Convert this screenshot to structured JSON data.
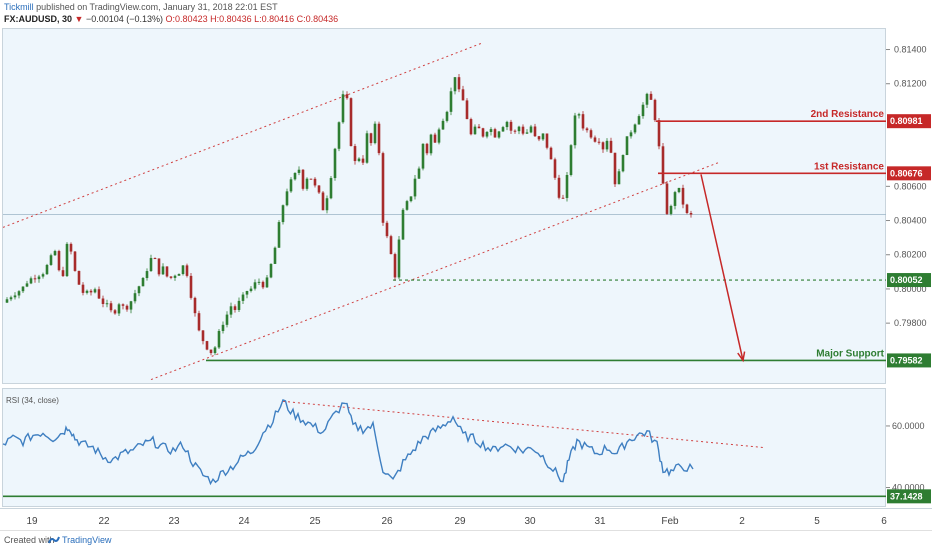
{
  "header": {
    "author": "Tickmill",
    "published_text": " published on TradingView.com, January 31, 2018 22:01 EST",
    "symbol": "FX:AUDUSD, 30",
    "change_arrow": "▼",
    "change_text": "−0.00104 (−0.13%)",
    "ohlc_text": "O:0.80423 H:0.80436 L:0.80416 C:0.80436"
  },
  "rsi_label": "RSI (34, close)",
  "footer": {
    "created_with": "Created with",
    "brand": "TradingView"
  },
  "colors": {
    "bull": "#2e7d32",
    "bear": "#a72b2b",
    "resistance": "#c62828",
    "support": "#2e7d32",
    "rsi_line": "#3f7fc1",
    "channel": "#d04040",
    "pane_bg": "#eef6fc"
  },
  "chart_data": [
    {
      "type": "candlestick",
      "title": "FX:AUDUSD, 30",
      "ylim": [
        0.7945,
        0.8152
      ],
      "y_ticks": [
        "0.81400",
        "0.81200",
        "0.80600",
        "0.80400",
        "0.80200",
        "0.80000",
        "0.79800"
      ],
      "x_ticks": [
        "19",
        "22",
        "23",
        "24",
        "25",
        "26",
        "29",
        "30",
        "31",
        "Feb",
        "2",
        "5",
        "6"
      ],
      "last_price": 0.80436,
      "grid": false,
      "levels": [
        {
          "name": "2nd Resistance",
          "value": 0.80981,
          "tag": "0.80981",
          "color": "#c62828",
          "style": "solid"
        },
        {
          "name": "1st Resistance",
          "value": 0.80676,
          "tag": "0.80676",
          "color": "#c62828",
          "style": "solid"
        },
        {
          "name": "",
          "value": 0.80052,
          "tag": "0.80052",
          "color": "#2e7d32",
          "style": "dashed"
        },
        {
          "name": "Major Support",
          "value": 0.79582,
          "tag": "0.79582",
          "color": "#2e7d32",
          "style": "solid"
        }
      ],
      "price_path": [
        [
          0,
          0.7992
        ],
        [
          10,
          0.7997
        ],
        [
          19,
          0.8
        ],
        [
          25,
          0.8005
        ],
        [
          34,
          0.8008
        ],
        [
          41,
          0.801
        ],
        [
          48,
          0.8018
        ],
        [
          52,
          0.8022
        ],
        [
          56,
          0.801
        ],
        [
          60,
          0.8009
        ],
        [
          64,
          0.8025
        ],
        [
          66,
          0.8028
        ],
        [
          70,
          0.8015
        ],
        [
          74,
          0.8005
        ],
        [
          80,
          0.7998
        ],
        [
          86,
          0.7997
        ],
        [
          92,
          0.8
        ],
        [
          98,
          0.7993
        ],
        [
          104,
          0.799
        ],
        [
          110,
          0.7985
        ],
        [
          116,
          0.7992
        ],
        [
          122,
          0.7988
        ],
        [
          128,
          0.7993
        ],
        [
          134,
          0.8
        ],
        [
          140,
          0.8005
        ],
        [
          146,
          0.8015
        ],
        [
          150,
          0.802
        ],
        [
          156,
          0.801
        ],
        [
          160,
          0.8012
        ],
        [
          166,
          0.8005
        ],
        [
          170,
          0.8008
        ],
        [
          176,
          0.801
        ],
        [
          182,
          0.8015
        ],
        [
          186,
          0.8003
        ],
        [
          190,
          0.799
        ],
        [
          196,
          0.7975
        ],
        [
          200,
          0.797
        ],
        [
          205,
          0.7965
        ],
        [
          210,
          0.7962
        ],
        [
          214,
          0.797
        ],
        [
          218,
          0.7978
        ],
        [
          224,
          0.7985
        ],
        [
          228,
          0.799
        ],
        [
          232,
          0.7988
        ],
        [
          236,
          0.7992
        ],
        [
          240,
          0.7995
        ],
        [
          244,
          0.7999
        ],
        [
          248,
          0.8
        ],
        [
          252,
          0.8003
        ],
        [
          258,
          0.8005
        ],
        [
          262,
          0.8
        ],
        [
          266,
          0.801
        ],
        [
          270,
          0.8018
        ],
        [
          274,
          0.803
        ],
        [
          278,
          0.8045
        ],
        [
          284,
          0.8058
        ],
        [
          290,
          0.8065
        ],
        [
          296,
          0.807
        ],
        [
          300,
          0.806
        ],
        [
          306,
          0.8068
        ],
        [
          310,
          0.8062
        ],
        [
          316,
          0.8055
        ],
        [
          320,
          0.8047
        ],
        [
          326,
          0.8058
        ],
        [
          330,
          0.8075
        ],
        [
          334,
          0.809
        ],
        [
          338,
          0.8105
        ],
        [
          342,
          0.812
        ],
        [
          346,
          0.81
        ],
        [
          350,
          0.807
        ],
        [
          354,
          0.8078
        ],
        [
          360,
          0.8075
        ],
        [
          364,
          0.809
        ],
        [
          368,
          0.8085
        ],
        [
          372,
          0.8095
        ],
        [
          376,
          0.808
        ],
        [
          378,
          0.806
        ],
        [
          380,
          0.804
        ],
        [
          384,
          0.803
        ],
        [
          388,
          0.802
        ],
        [
          392,
          0.8008
        ],
        [
          396,
          0.8028
        ],
        [
          400,
          0.8045
        ],
        [
          404,
          0.805
        ],
        [
          408,
          0.8055
        ],
        [
          412,
          0.8065
        ],
        [
          416,
          0.807
        ],
        [
          420,
          0.8085
        ],
        [
          424,
          0.808
        ],
        [
          428,
          0.809
        ],
        [
          432,
          0.8085
        ],
        [
          436,
          0.8095
        ],
        [
          440,
          0.81
        ],
        [
          444,
          0.8105
        ],
        [
          448,
          0.8115
        ],
        [
          452,
          0.8125
        ],
        [
          456,
          0.8115
        ],
        [
          460,
          0.811
        ],
        [
          464,
          0.81
        ],
        [
          468,
          0.809
        ],
        [
          474,
          0.8095
        ],
        [
          480,
          0.809
        ],
        [
          486,
          0.8095
        ],
        [
          492,
          0.809
        ],
        [
          498,
          0.8095
        ],
        [
          504,
          0.8098
        ],
        [
          510,
          0.809
        ],
        [
          516,
          0.8095
        ],
        [
          522,
          0.809
        ],
        [
          528,
          0.8095
        ],
        [
          534,
          0.8085
        ],
        [
          540,
          0.809
        ],
        [
          546,
          0.808
        ],
        [
          550,
          0.807
        ],
        [
          554,
          0.806
        ],
        [
          558,
          0.805
        ],
        [
          562,
          0.8055
        ],
        [
          566,
          0.8075
        ],
        [
          570,
          0.8095
        ],
        [
          574,
          0.8105
        ],
        [
          578,
          0.81
        ],
        [
          582,
          0.809
        ],
        [
          586,
          0.8095
        ],
        [
          590,
          0.8085
        ],
        [
          594,
          0.809
        ],
        [
          598,
          0.8085
        ],
        [
          602,
          0.808
        ],
        [
          606,
          0.8095
        ],
        [
          610,
          0.8065
        ],
        [
          614,
          0.806
        ],
        [
          618,
          0.8075
        ],
        [
          622,
          0.8085
        ],
        [
          626,
          0.809
        ],
        [
          630,
          0.8095
        ],
        [
          634,
          0.81
        ],
        [
          638,
          0.8105
        ],
        [
          642,
          0.811
        ],
        [
          646,
          0.8115
        ],
        [
          650,
          0.8105
        ],
        [
          654,
          0.8095
        ],
        [
          658,
          0.807
        ],
        [
          662,
          0.805
        ],
        [
          666,
          0.804
        ],
        [
          670,
          0.8055
        ],
        [
          674,
          0.806
        ],
        [
          678,
          0.8055
        ],
        [
          682,
          0.8045
        ],
        [
          686,
          0.8042
        ],
        [
          690,
          0.80436
        ]
      ],
      "channel_upper": [
        [
          0,
          0.8036
        ],
        [
          480,
          0.8144
        ]
      ],
      "channel_lower": [
        [
          148,
          0.7947
        ],
        [
          716,
          0.8074
        ]
      ],
      "projection": [
        [
          698,
          0.8067
        ],
        [
          740,
          0.79582
        ]
      ],
      "series": [
        {
          "name": "AUDUSD",
          "values": []
        }
      ]
    },
    {
      "type": "line",
      "title": "RSI (34, close)",
      "ylim": [
        34,
        72
      ],
      "y_ticks": [
        "60.0000",
        "40.0000"
      ],
      "levels": [
        {
          "value": 37.1428,
          "tag": "37.1428",
          "color": "#2e7d32"
        }
      ],
      "trendline": [
        [
          280,
          68
        ],
        [
          760,
          53
        ]
      ],
      "series": [
        {
          "name": "RSI",
          "values": [
            [
              0,
              54
            ],
            [
              10,
              56
            ],
            [
              20,
              55
            ],
            [
              30,
              57
            ],
            [
              40,
              58
            ],
            [
              50,
              56
            ],
            [
              60,
              58
            ],
            [
              66,
              60
            ],
            [
              72,
              56
            ],
            [
              80,
              54
            ],
            [
              90,
              53
            ],
            [
              100,
              50
            ],
            [
              110,
              49
            ],
            [
              120,
              51
            ],
            [
              130,
              52
            ],
            [
              140,
              54
            ],
            [
              150,
              55
            ],
            [
              160,
              53
            ],
            [
              170,
              52
            ],
            [
              180,
              54
            ],
            [
              190,
              48
            ],
            [
              200,
              44
            ],
            [
              210,
              42
            ],
            [
              220,
              45
            ],
            [
              230,
              47
            ],
            [
              240,
              50
            ],
            [
              250,
              52
            ],
            [
              260,
              58
            ],
            [
              270,
              62
            ],
            [
              280,
              68
            ],
            [
              290,
              64
            ],
            [
              300,
              62
            ],
            [
              310,
              60
            ],
            [
              320,
              58
            ],
            [
              330,
              63
            ],
            [
              342,
              68
            ],
            [
              350,
              60
            ],
            [
              360,
              59
            ],
            [
              370,
              60
            ],
            [
              380,
              46
            ],
            [
              390,
              42
            ],
            [
              400,
              48
            ],
            [
              410,
              52
            ],
            [
              420,
              56
            ],
            [
              430,
              58
            ],
            [
              440,
              60
            ],
            [
              450,
              63
            ],
            [
              460,
              57
            ],
            [
              470,
              56
            ],
            [
              480,
              54
            ],
            [
              490,
              52
            ],
            [
              500,
              54
            ],
            [
              510,
              53
            ],
            [
              520,
              52
            ],
            [
              530,
              53
            ],
            [
              540,
              50
            ],
            [
              550,
              46
            ],
            [
              560,
              42
            ],
            [
              566,
              49
            ],
            [
              574,
              55
            ],
            [
              584,
              53
            ],
            [
              594,
              51
            ],
            [
              604,
              53
            ],
            [
              614,
              51
            ],
            [
              624,
              55
            ],
            [
              634,
              57
            ],
            [
              644,
              58
            ],
            [
              654,
              54
            ],
            [
              660,
              46
            ],
            [
              668,
              45
            ],
            [
              678,
              47
            ],
            [
              690,
              46
            ]
          ]
        }
      ]
    }
  ],
  "axis_labels": {
    "price_ticks": [
      "0.81400",
      "0.81200",
      "0.80600",
      "0.80400",
      "0.80200",
      "0.80000",
      "0.79800"
    ],
    "rsi_ticks": [
      "60.0000",
      "40.0000"
    ],
    "date_ticks": [
      "19",
      "22",
      "23",
      "24",
      "25",
      "26",
      "29",
      "30",
      "31",
      "Feb",
      "2",
      "5",
      "6"
    ]
  }
}
